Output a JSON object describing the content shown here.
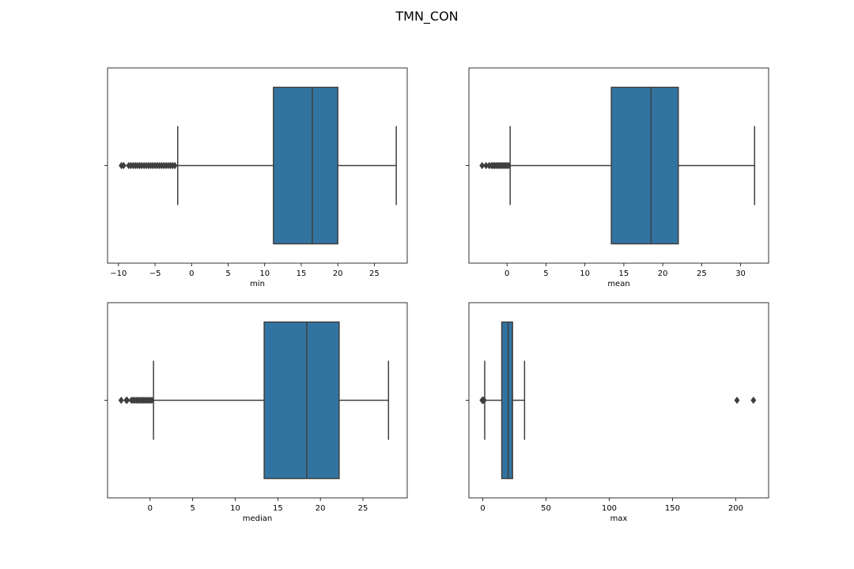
{
  "figure": {
    "title": "TMN_CON"
  },
  "colors": {
    "box": "#3274a1",
    "line": "#3f3f3f",
    "frame": "#000000"
  },
  "chart_data": [
    {
      "type": "boxplot",
      "xlabel": "min",
      "xlim": [
        -11.5,
        29.5
      ],
      "ticks": [
        -10,
        -5,
        0,
        5,
        10,
        15,
        20,
        25
      ],
      "tick_labels": [
        "−10",
        "−5",
        "0",
        "5",
        "10",
        "15",
        "20",
        "25"
      ],
      "whisker_low": -1.9,
      "q1": 11.2,
      "median": 16.5,
      "q3": 20.0,
      "whisker_high": 28.0,
      "outliers": [
        -9.6,
        -9.3,
        -8.6,
        -8.3,
        -8.0,
        -7.7,
        -7.4,
        -7.1,
        -6.8,
        -6.5,
        -6.2,
        -5.9,
        -5.6,
        -5.3,
        -5.0,
        -4.7,
        -4.4,
        -4.1,
        -3.8,
        -3.5,
        -3.2,
        -2.9,
        -2.6,
        -2.3
      ]
    },
    {
      "type": "boxplot",
      "xlabel": "mean",
      "xlim": [
        -4.9,
        33.6
      ],
      "ticks": [
        0,
        5,
        10,
        15,
        20,
        25,
        30
      ],
      "tick_labels": [
        "0",
        "5",
        "10",
        "15",
        "20",
        "25",
        "30"
      ],
      "whisker_low": 0.4,
      "q1": 13.4,
      "median": 18.5,
      "q3": 22.0,
      "whisker_high": 31.8,
      "outliers": [
        -3.2,
        -2.7,
        -2.3,
        -2.0,
        -1.8,
        -1.6,
        -1.4,
        -1.2,
        -1.0,
        -0.8,
        -0.6,
        -0.4,
        -0.2,
        0.0,
        0.2
      ]
    },
    {
      "type": "boxplot",
      "xlabel": "median",
      "xlim": [
        -5.0,
        30.2
      ],
      "ticks": [
        0,
        5,
        10,
        15,
        20,
        25
      ],
      "tick_labels": [
        "0",
        "5",
        "10",
        "15",
        "20",
        "25"
      ],
      "whisker_low": 0.4,
      "q1": 13.4,
      "median": 18.4,
      "q3": 22.2,
      "whisker_high": 28.0,
      "outliers": [
        -3.4,
        -2.8,
        -2.7,
        -2.2,
        -2.0,
        -1.8,
        -1.6,
        -1.4,
        -1.2,
        -1.0,
        -0.8,
        -0.6,
        -0.4,
        -0.2,
        0.0,
        0.2
      ]
    },
    {
      "type": "boxplot",
      "xlabel": "max",
      "xlim": [
        -11.0,
        226.0
      ],
      "ticks": [
        0,
        50,
        100,
        150,
        200
      ],
      "tick_labels": [
        "0",
        "50",
        "100",
        "150",
        "200"
      ],
      "whisker_low": 1.5,
      "q1": 15.0,
      "median": 20.0,
      "q3": 23.5,
      "whisker_high": 33.0,
      "outliers": [
        -0.5,
        0.0,
        0.5,
        1.0,
        201.0,
        214.0
      ]
    }
  ]
}
